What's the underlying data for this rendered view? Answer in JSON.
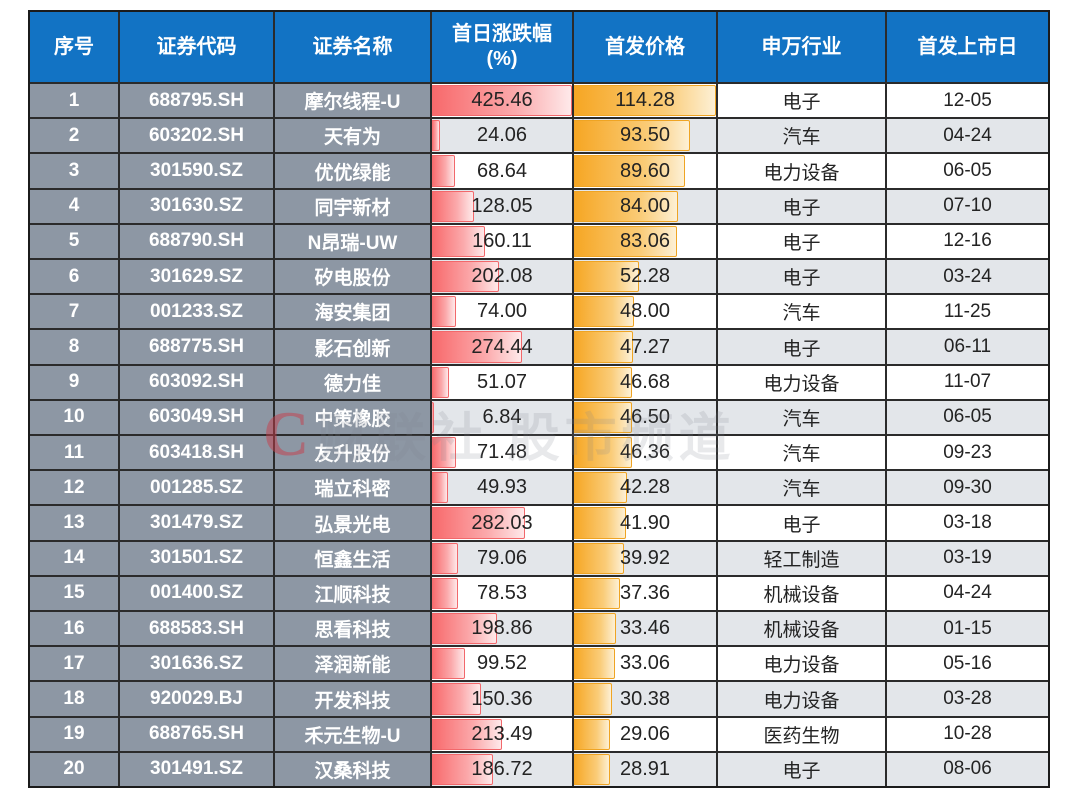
{
  "header": {
    "index": "序号",
    "code": "证券代码",
    "name": "证券名称",
    "change_line1": "首日涨跌幅",
    "change_line2": "(%)",
    "price": "首发价格",
    "industry": "申万行业",
    "date": "首发上市日"
  },
  "chart_data": {
    "type": "table",
    "columns": [
      "序号",
      "证券代码",
      "证券名称",
      "首日涨跌幅(%)",
      "首发价格",
      "申万行业",
      "首发上市日"
    ],
    "change_bar_max": 425.46,
    "price_bar_max": 114.28,
    "rows": [
      {
        "no": "1",
        "code": "688795.SH",
        "name": "摩尔线程-U",
        "change": "425.46",
        "price": "114.28",
        "industry": "电子",
        "date": "12-05"
      },
      {
        "no": "2",
        "code": "603202.SH",
        "name": "天有为",
        "change": "24.06",
        "price": "93.50",
        "industry": "汽车",
        "date": "04-24"
      },
      {
        "no": "3",
        "code": "301590.SZ",
        "name": "优优绿能",
        "change": "68.64",
        "price": "89.60",
        "industry": "电力设备",
        "date": "06-05"
      },
      {
        "no": "4",
        "code": "301630.SZ",
        "name": "同宇新材",
        "change": "128.05",
        "price": "84.00",
        "industry": "电子",
        "date": "07-10"
      },
      {
        "no": "5",
        "code": "688790.SH",
        "name": "N昂瑞-UW",
        "change": "160.11",
        "price": "83.06",
        "industry": "电子",
        "date": "12-16"
      },
      {
        "no": "6",
        "code": "301629.SZ",
        "name": "矽电股份",
        "change": "202.08",
        "price": "52.28",
        "industry": "电子",
        "date": "03-24"
      },
      {
        "no": "7",
        "code": "001233.SZ",
        "name": "海安集团",
        "change": "74.00",
        "price": "48.00",
        "industry": "汽车",
        "date": "11-25"
      },
      {
        "no": "8",
        "code": "688775.SH",
        "name": "影石创新",
        "change": "274.44",
        "price": "47.27",
        "industry": "电子",
        "date": "06-11"
      },
      {
        "no": "9",
        "code": "603092.SH",
        "name": "德力佳",
        "change": "51.07",
        "price": "46.68",
        "industry": "电力设备",
        "date": "11-07"
      },
      {
        "no": "10",
        "code": "603049.SH",
        "name": "中策橡胶",
        "change": "6.84",
        "price": "46.50",
        "industry": "汽车",
        "date": "06-05"
      },
      {
        "no": "11",
        "code": "603418.SH",
        "name": "友升股份",
        "change": "71.48",
        "price": "46.36",
        "industry": "汽车",
        "date": "09-23"
      },
      {
        "no": "12",
        "code": "001285.SZ",
        "name": "瑞立科密",
        "change": "49.93",
        "price": "42.28",
        "industry": "汽车",
        "date": "09-30"
      },
      {
        "no": "13",
        "code": "301479.SZ",
        "name": "弘景光电",
        "change": "282.03",
        "price": "41.90",
        "industry": "电子",
        "date": "03-18"
      },
      {
        "no": "14",
        "code": "301501.SZ",
        "name": "恒鑫生活",
        "change": "79.06",
        "price": "39.92",
        "industry": "轻工制造",
        "date": "03-19"
      },
      {
        "no": "15",
        "code": "001400.SZ",
        "name": "江顺科技",
        "change": "78.53",
        "price": "37.36",
        "industry": "机械设备",
        "date": "04-24"
      },
      {
        "no": "16",
        "code": "688583.SH",
        "name": "思看科技",
        "change": "198.86",
        "price": "33.46",
        "industry": "机械设备",
        "date": "01-15"
      },
      {
        "no": "17",
        "code": "301636.SZ",
        "name": "泽润新能",
        "change": "99.52",
        "price": "33.06",
        "industry": "电力设备",
        "date": "05-16"
      },
      {
        "no": "18",
        "code": "920029.BJ",
        "name": "开发科技",
        "change": "150.36",
        "price": "30.38",
        "industry": "电力设备",
        "date": "03-28"
      },
      {
        "no": "19",
        "code": "688765.SH",
        "name": "禾元生物-U",
        "change": "213.49",
        "price": "29.06",
        "industry": "医药生物",
        "date": "10-28"
      },
      {
        "no": "20",
        "code": "301491.SZ",
        "name": "汉桑科技",
        "change": "186.72",
        "price": "28.91",
        "industry": "电子",
        "date": "08-06"
      }
    ]
  },
  "watermark": {
    "logo": "C",
    "text": "财联社 股市频道"
  },
  "colors": {
    "header_bg": "#1273C4",
    "id_bg": "#8D97A4",
    "row_alt_bg": "#E3E6EA",
    "border_outer": "#1b1b1b",
    "border_inner": "#2b2b2b",
    "change_bar_color": "#F8696B",
    "change_bar_border": "#F2686B",
    "price_bar_color": "#F6A623",
    "price_bar_border": "#EFA423"
  }
}
